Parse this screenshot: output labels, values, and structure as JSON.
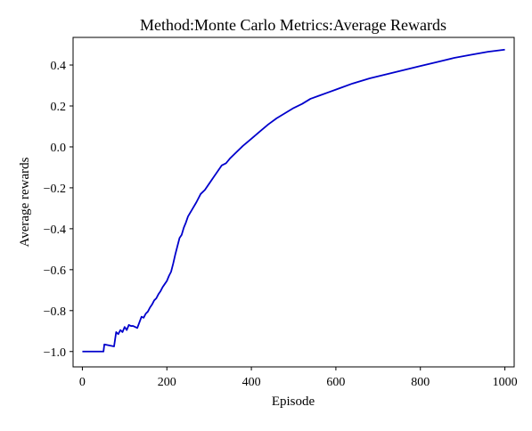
{
  "chart_data": {
    "type": "line",
    "title": "Method:Monte Carlo   Metrics:Average Rewards",
    "xlabel": "Episode",
    "ylabel": "Average rewards",
    "xlim": [
      -22,
      1022
    ],
    "ylim": [
      -1.075,
      0.535
    ],
    "xticks": [
      0,
      200,
      400,
      600,
      800,
      1000
    ],
    "yticks": [
      -1.0,
      -0.8,
      -0.6,
      -0.4,
      -0.2,
      0.0,
      0.2,
      0.4
    ],
    "xtick_labels": [
      "0",
      "200",
      "400",
      "600",
      "800",
      "1000"
    ],
    "ytick_labels": [
      "−1.0",
      "−0.8",
      "−0.6",
      "−0.4",
      "−0.2",
      "0.0",
      "0.2",
      "0.4"
    ],
    "grid": false,
    "series": [
      {
        "color": "#0000cc",
        "x": [
          0,
          50,
          52,
          75,
          80,
          85,
          90,
          95,
          100,
          105,
          110,
          115,
          120,
          130,
          140,
          145,
          150,
          155,
          160,
          165,
          170,
          175,
          180,
          185,
          190,
          195,
          200,
          205,
          210,
          215,
          220,
          225,
          230,
          235,
          240,
          245,
          250,
          260,
          270,
          280,
          290,
          300,
          310,
          320,
          330,
          340,
          350,
          360,
          380,
          400,
          420,
          440,
          460,
          480,
          500,
          520,
          540,
          560,
          580,
          600,
          640,
          680,
          720,
          760,
          800,
          840,
          880,
          920,
          960,
          1000
        ],
        "y": [
          -1.0,
          -1.0,
          -0.965,
          -0.975,
          -0.905,
          -0.915,
          -0.895,
          -0.905,
          -0.88,
          -0.895,
          -0.87,
          -0.875,
          -0.875,
          -0.885,
          -0.83,
          -0.835,
          -0.815,
          -0.805,
          -0.785,
          -0.77,
          -0.75,
          -0.74,
          -0.72,
          -0.705,
          -0.685,
          -0.67,
          -0.655,
          -0.63,
          -0.61,
          -0.57,
          -0.525,
          -0.485,
          -0.445,
          -0.43,
          -0.395,
          -0.37,
          -0.34,
          -0.305,
          -0.27,
          -0.23,
          -0.21,
          -0.18,
          -0.15,
          -0.12,
          -0.09,
          -0.08,
          -0.055,
          -0.035,
          0.005,
          0.04,
          0.075,
          0.11,
          0.14,
          0.165,
          0.19,
          0.21,
          0.235,
          0.25,
          0.265,
          0.28,
          0.31,
          0.335,
          0.355,
          0.375,
          0.395,
          0.415,
          0.435,
          0.45,
          0.465,
          0.475
        ]
      }
    ]
  }
}
